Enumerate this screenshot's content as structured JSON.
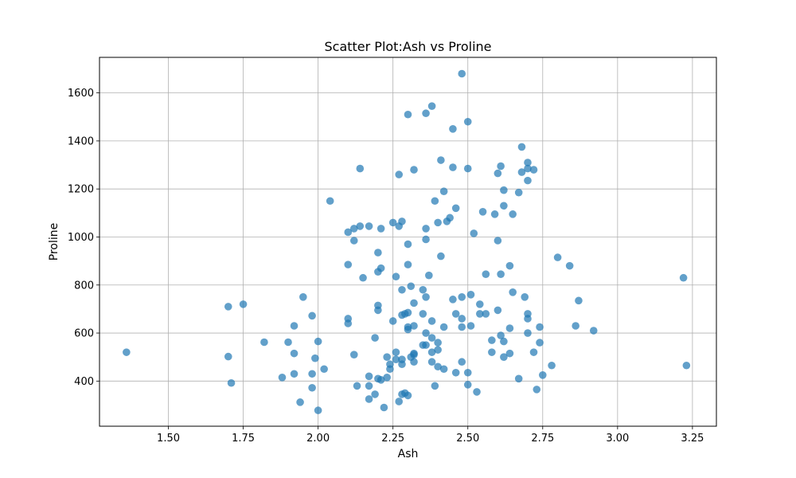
{
  "chart_data": {
    "type": "scatter",
    "title": "Scatter Plot:Ash vs Proline",
    "xlabel": "Ash",
    "ylabel": "Proline",
    "xlim": [
      1.27,
      3.33
    ],
    "ylim": [
      212,
      1748
    ],
    "x_ticks": [
      1.5,
      1.75,
      2.0,
      2.25,
      2.5,
      2.75,
      3.0,
      3.25
    ],
    "x_tick_labels": [
      "1.50",
      "1.75",
      "2.00",
      "2.25",
      "2.50",
      "2.75",
      "3.00",
      "3.25"
    ],
    "y_ticks": [
      400,
      600,
      800,
      1000,
      1200,
      1400,
      1600
    ],
    "y_tick_labels": [
      "400",
      "600",
      "800",
      "1000",
      "1200",
      "1400",
      "1600"
    ],
    "grid": true,
    "point_color": "#1f77b4",
    "point_opacity": 0.7,
    "points": [
      [
        1.36,
        520
      ],
      [
        1.7,
        710
      ],
      [
        1.7,
        502
      ],
      [
        1.71,
        392
      ],
      [
        1.75,
        720
      ],
      [
        1.82,
        562
      ],
      [
        1.88,
        415
      ],
      [
        1.9,
        562
      ],
      [
        1.92,
        630
      ],
      [
        1.92,
        515
      ],
      [
        1.92,
        430
      ],
      [
        1.94,
        312
      ],
      [
        1.95,
        750
      ],
      [
        1.98,
        672
      ],
      [
        1.98,
        430
      ],
      [
        1.98,
        372
      ],
      [
        1.99,
        495
      ],
      [
        2.0,
        565
      ],
      [
        2.0,
        278
      ],
      [
        2.02,
        450
      ],
      [
        2.04,
        1150
      ],
      [
        2.1,
        1020
      ],
      [
        2.1,
        885
      ],
      [
        2.1,
        660
      ],
      [
        2.1,
        640
      ],
      [
        2.12,
        985
      ],
      [
        2.12,
        1035
      ],
      [
        2.12,
        510
      ],
      [
        2.13,
        380
      ],
      [
        2.14,
        1285
      ],
      [
        2.14,
        1045
      ],
      [
        2.15,
        830
      ],
      [
        2.17,
        1045
      ],
      [
        2.17,
        420
      ],
      [
        2.17,
        380
      ],
      [
        2.17,
        325
      ],
      [
        2.19,
        580
      ],
      [
        2.19,
        345
      ],
      [
        2.2,
        935
      ],
      [
        2.2,
        855
      ],
      [
        2.2,
        715
      ],
      [
        2.2,
        695
      ],
      [
        2.2,
        410
      ],
      [
        2.21,
        1035
      ],
      [
        2.21,
        870
      ],
      [
        2.21,
        405
      ],
      [
        2.22,
        290
      ],
      [
        2.23,
        500
      ],
      [
        2.23,
        415
      ],
      [
        2.24,
        470
      ],
      [
        2.24,
        450
      ],
      [
        2.25,
        1060
      ],
      [
        2.25,
        650
      ],
      [
        2.26,
        835
      ],
      [
        2.26,
        520
      ],
      [
        2.26,
        490
      ],
      [
        2.27,
        1260
      ],
      [
        2.27,
        1045
      ],
      [
        2.27,
        315
      ],
      [
        2.28,
        1065
      ],
      [
        2.28,
        780
      ],
      [
        2.28,
        675
      ],
      [
        2.28,
        490
      ],
      [
        2.28,
        470
      ],
      [
        2.28,
        345
      ],
      [
        2.29,
        680
      ],
      [
        2.29,
        350
      ],
      [
        2.3,
        1510
      ],
      [
        2.3,
        970
      ],
      [
        2.3,
        885
      ],
      [
        2.3,
        685
      ],
      [
        2.3,
        625
      ],
      [
        2.3,
        615
      ],
      [
        2.3,
        340
      ],
      [
        2.31,
        795
      ],
      [
        2.31,
        500
      ],
      [
        2.32,
        1280
      ],
      [
        2.32,
        725
      ],
      [
        2.32,
        630
      ],
      [
        2.32,
        515
      ],
      [
        2.32,
        510
      ],
      [
        2.32,
        480
      ],
      [
        2.35,
        780
      ],
      [
        2.35,
        680
      ],
      [
        2.35,
        550
      ],
      [
        2.36,
        1515
      ],
      [
        2.36,
        1035
      ],
      [
        2.36,
        990
      ],
      [
        2.36,
        750
      ],
      [
        2.36,
        600
      ],
      [
        2.36,
        550
      ],
      [
        2.37,
        840
      ],
      [
        2.38,
        1545
      ],
      [
        2.38,
        650
      ],
      [
        2.38,
        580
      ],
      [
        2.38,
        520
      ],
      [
        2.38,
        480
      ],
      [
        2.39,
        1150
      ],
      [
        2.39,
        380
      ],
      [
        2.4,
        1060
      ],
      [
        2.4,
        560
      ],
      [
        2.4,
        530
      ],
      [
        2.4,
        460
      ],
      [
        2.41,
        1320
      ],
      [
        2.41,
        920
      ],
      [
        2.42,
        1190
      ],
      [
        2.42,
        625
      ],
      [
        2.42,
        450
      ],
      [
        2.43,
        1065
      ],
      [
        2.44,
        1080
      ],
      [
        2.45,
        1450
      ],
      [
        2.45,
        1290
      ],
      [
        2.45,
        740
      ],
      [
        2.46,
        1120
      ],
      [
        2.46,
        680
      ],
      [
        2.46,
        435
      ],
      [
        2.48,
        1680
      ],
      [
        2.48,
        750
      ],
      [
        2.48,
        660
      ],
      [
        2.48,
        625
      ],
      [
        2.48,
        480
      ],
      [
        2.5,
        1480
      ],
      [
        2.5,
        1285
      ],
      [
        2.5,
        435
      ],
      [
        2.5,
        385
      ],
      [
        2.51,
        760
      ],
      [
        2.51,
        630
      ],
      [
        2.52,
        1015
      ],
      [
        2.53,
        355
      ],
      [
        2.54,
        720
      ],
      [
        2.54,
        680
      ],
      [
        2.55,
        1105
      ],
      [
        2.56,
        845
      ],
      [
        2.56,
        680
      ],
      [
        2.58,
        570
      ],
      [
        2.58,
        520
      ],
      [
        2.59,
        1095
      ],
      [
        2.6,
        1265
      ],
      [
        2.6,
        985
      ],
      [
        2.6,
        695
      ],
      [
        2.61,
        1295
      ],
      [
        2.61,
        845
      ],
      [
        2.61,
        590
      ],
      [
        2.62,
        1195
      ],
      [
        2.62,
        1130
      ],
      [
        2.62,
        565
      ],
      [
        2.62,
        500
      ],
      [
        2.64,
        880
      ],
      [
        2.64,
        620
      ],
      [
        2.64,
        515
      ],
      [
        2.65,
        1095
      ],
      [
        2.65,
        770
      ],
      [
        2.67,
        1185
      ],
      [
        2.67,
        410
      ],
      [
        2.68,
        1375
      ],
      [
        2.68,
        1270
      ],
      [
        2.69,
        750
      ],
      [
        2.7,
        1310
      ],
      [
        2.7,
        1285
      ],
      [
        2.7,
        1235
      ],
      [
        2.7,
        680
      ],
      [
        2.7,
        660
      ],
      [
        2.7,
        600
      ],
      [
        2.72,
        1280
      ],
      [
        2.72,
        520
      ],
      [
        2.73,
        365
      ],
      [
        2.74,
        625
      ],
      [
        2.74,
        560
      ],
      [
        2.75,
        425
      ],
      [
        2.78,
        465
      ],
      [
        2.8,
        915
      ],
      [
        2.84,
        880
      ],
      [
        2.86,
        630
      ],
      [
        2.87,
        735
      ],
      [
        2.92,
        610
      ],
      [
        3.22,
        830
      ],
      [
        3.23,
        465
      ]
    ]
  }
}
